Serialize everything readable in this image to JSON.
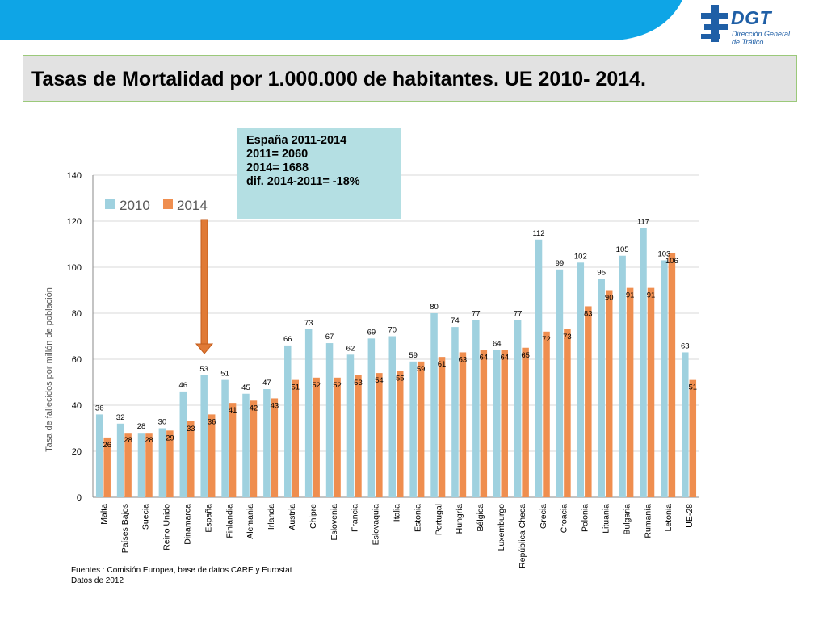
{
  "header": {
    "logo_text": "DGT",
    "logo_subtitle": "Dirección General\nde Tráfico"
  },
  "title": "Tasas de Mortalidad por 1.000.000 de habitantes. UE 2010- 2014.",
  "callout": {
    "line1": "España 2011-2014",
    "line2": "2011= 2060",
    "line3": "2014= 1688",
    "line4": "dif. 2014-2011= -18%"
  },
  "colors": {
    "topbar": "#0ea5e6",
    "series_2010": "#9fd1df",
    "series_2014": "#ef8e4f",
    "arrow": "#e07a36",
    "title_border": "#9bc97a"
  },
  "chart_data": {
    "type": "bar",
    "ylabel": "Tasa de fallecidos por millón de población",
    "xlabel": "",
    "ylim": [
      0,
      140
    ],
    "yticks": [
      0,
      20,
      40,
      60,
      80,
      100,
      120,
      140
    ],
    "grid": true,
    "legend_position": "top-left",
    "categories": [
      "Malta",
      "Países Bajos",
      "Suecia",
      "Reino Unido",
      "Dinamarca",
      "España",
      "Finlandia",
      "Alemania",
      "Irlanda",
      "Austria",
      "Chipre",
      "Eslovenia",
      "Francia",
      "Eslovaquia",
      "Italia",
      "Estonia",
      "Portugal",
      "Hungría",
      "Bélgica",
      "Luxemburgo",
      "República Checa",
      "Grecia",
      "Croacia",
      "Polonia",
      "Lituania",
      "Bulgaria",
      "Rumanía",
      "Letonia",
      "UE-28"
    ],
    "series": [
      {
        "name": "2010",
        "color": "#9fd1df",
        "values": [
          36,
          32,
          28,
          30,
          46,
          53,
          51,
          45,
          47,
          66,
          73,
          67,
          62,
          69,
          70,
          59,
          80,
          74,
          77,
          64,
          77,
          112,
          99,
          102,
          95,
          105,
          117,
          103,
          63
        ]
      },
      {
        "name": "2014",
        "color": "#ef8e4f",
        "values": [
          26,
          28,
          28,
          29,
          33,
          36,
          41,
          42,
          43,
          51,
          52,
          52,
          53,
          54,
          55,
          59,
          61,
          63,
          64,
          64,
          65,
          72,
          73,
          83,
          90,
          91,
          91,
          106,
          51
        ]
      }
    ],
    "annotation": {
      "type": "arrow",
      "target_category": "España"
    }
  },
  "footer": {
    "line1": "Fuentes : Comisión Europea, base de datos CARE y Eurostat",
    "line2": "Datos de 2012"
  }
}
